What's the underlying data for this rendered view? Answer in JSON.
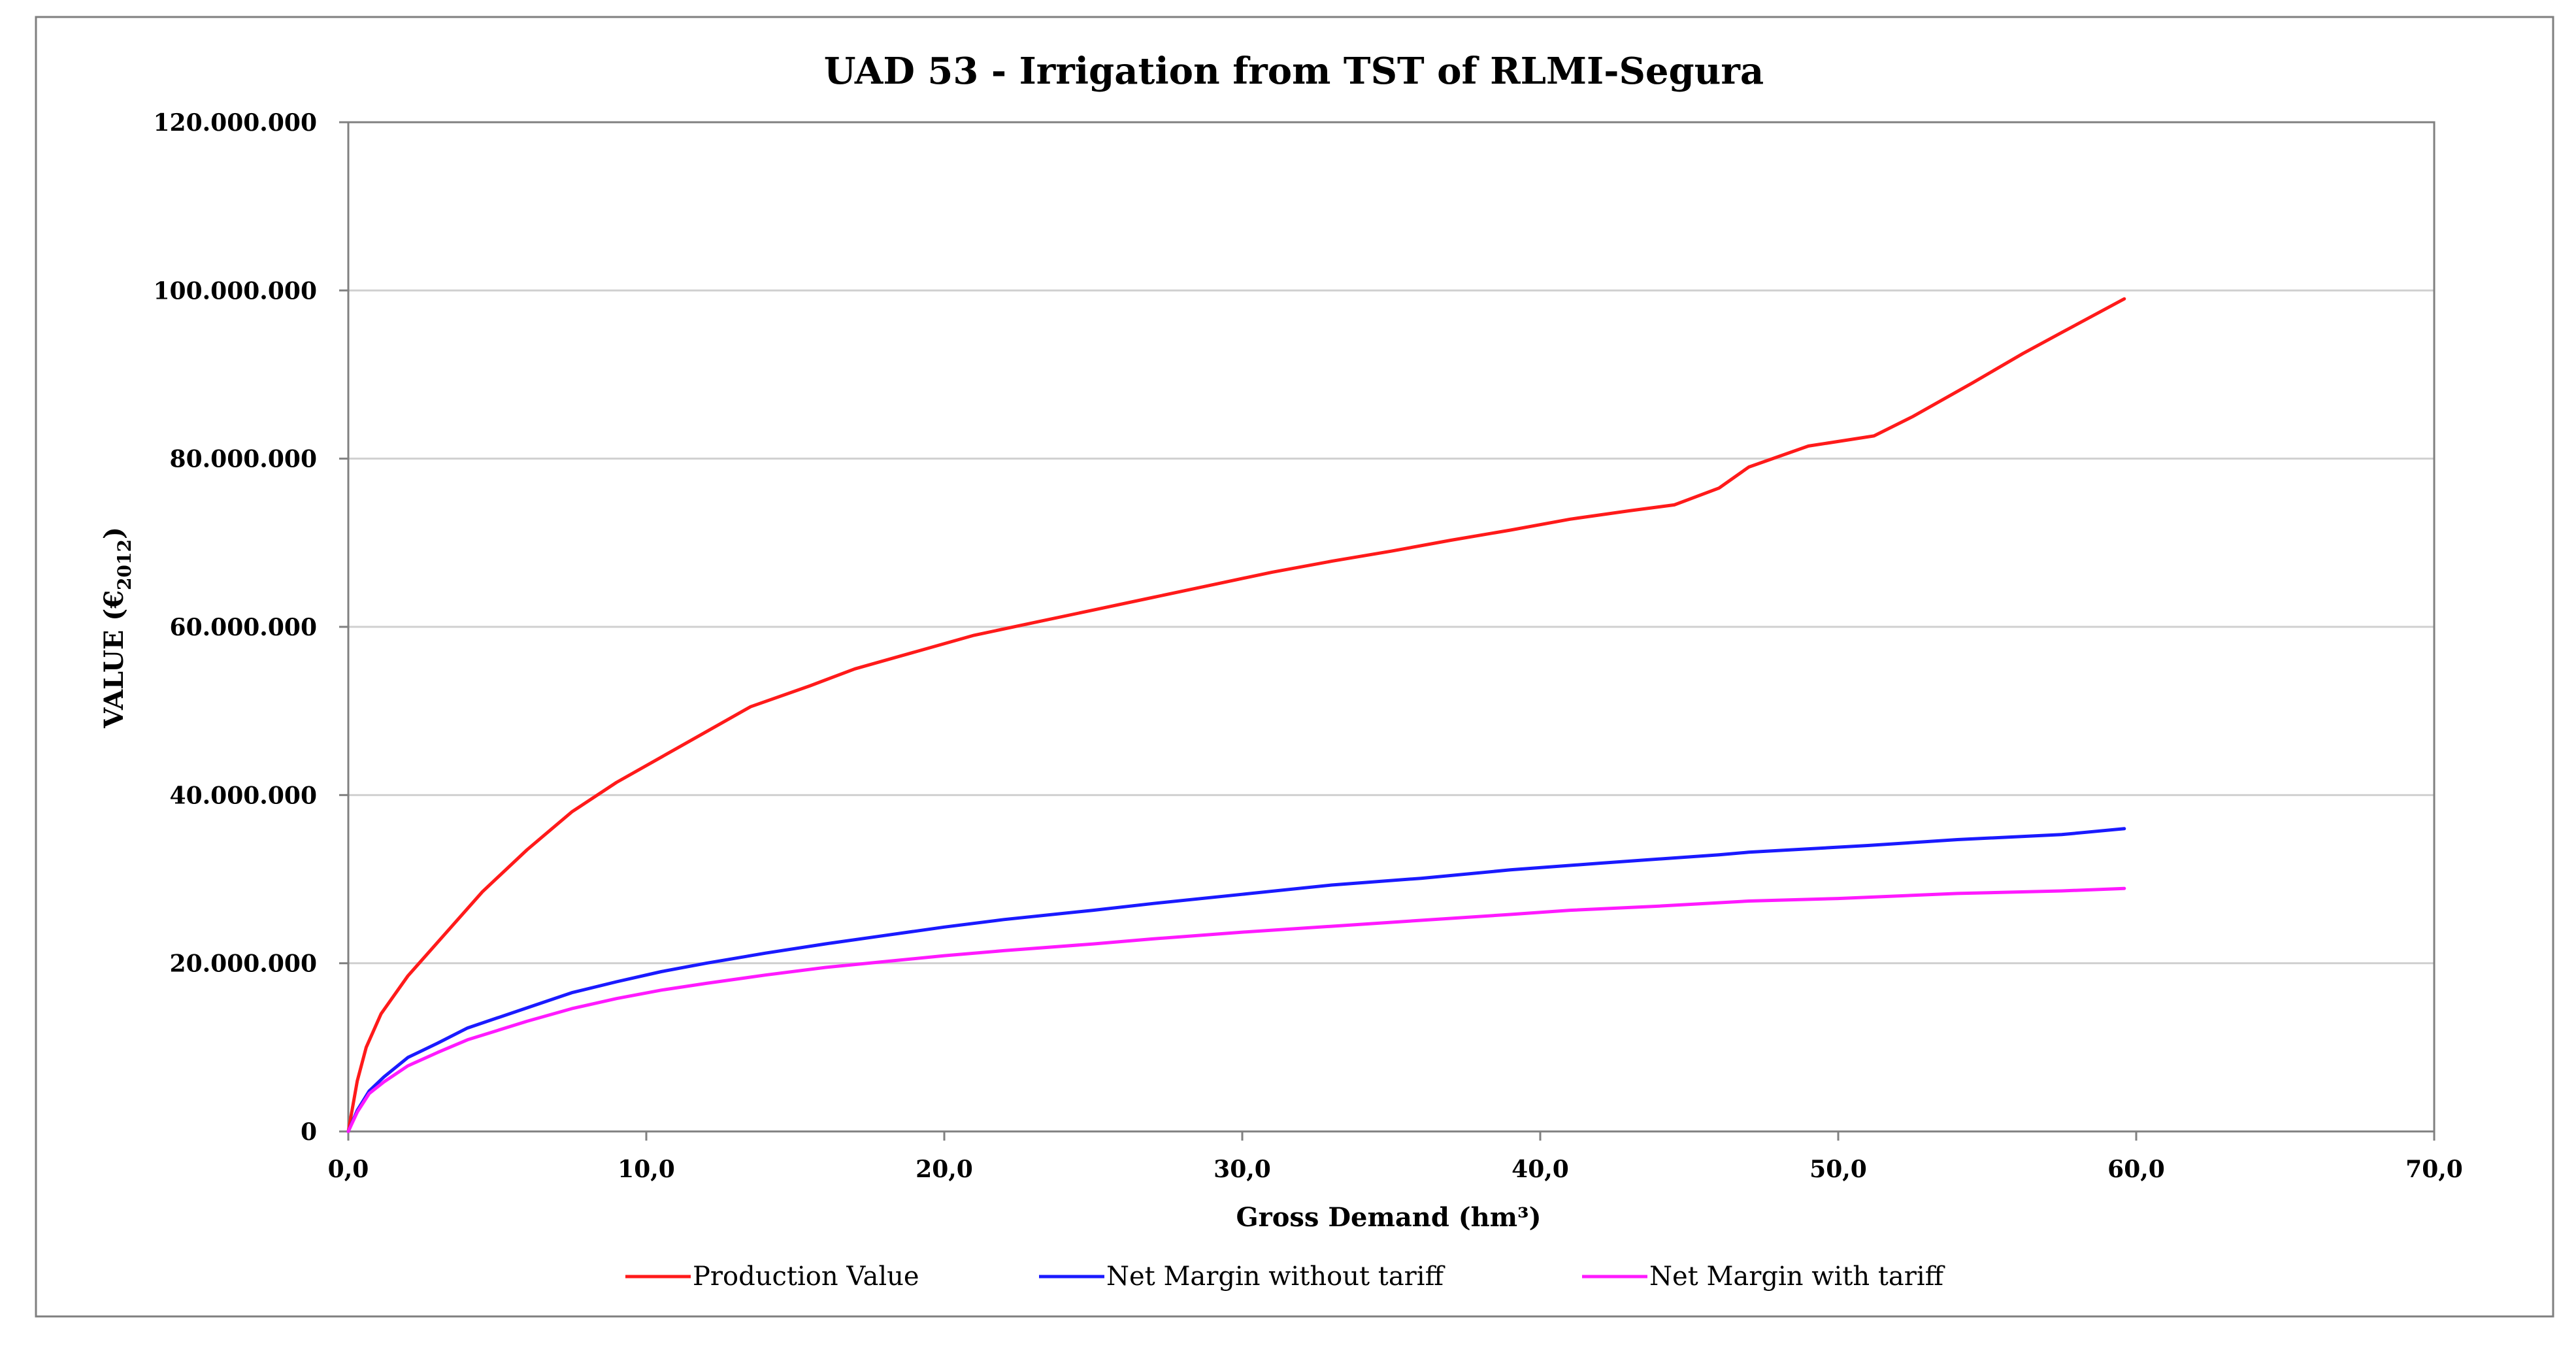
{
  "chart_data": {
    "type": "line",
    "title": "UAD 53 - Irrigation from TST of RLMI-Segura",
    "xlabel": "Gross Demand (hm³)",
    "ylabel_main": "VALUE (€",
    "ylabel_sub": "2012",
    "ylabel_close": ")",
    "xlim": [
      0,
      70
    ],
    "ylim": [
      0,
      120000000
    ],
    "x_ticks": [
      0,
      10,
      20,
      30,
      40,
      50,
      60,
      70
    ],
    "x_tick_labels": [
      "0,0",
      "10,0",
      "20,0",
      "30,0",
      "40,0",
      "50,0",
      "60,0",
      "70,0"
    ],
    "y_ticks": [
      0,
      20000000,
      40000000,
      60000000,
      80000000,
      100000000,
      120000000
    ],
    "y_tick_labels": [
      "0",
      "20.000.000",
      "40.000.000",
      "60.000.000",
      "80.000.000",
      "100.000.000",
      "120.000.000"
    ],
    "grid": "horizontal",
    "legend_position": "bottom",
    "series": [
      {
        "name": "Production Value",
        "color": "#ff1a1a",
        "x": [
          0,
          0.3,
          0.6,
          1.1,
          2,
          3,
          4.5,
          6,
          7.5,
          9,
          10.5,
          12,
          13.5,
          15.5,
          17,
          19,
          21,
          23,
          25,
          27,
          29,
          31,
          33,
          35,
          37,
          39,
          41,
          43,
          44.5,
          46,
          47,
          49,
          51.2,
          52.5,
          54.5,
          56.2,
          57.5,
          59.6
        ],
        "y": [
          0,
          6000000,
          10000000,
          14000000,
          18500000,
          22500000,
          28500000,
          33500000,
          38000000,
          41500000,
          44500000,
          47500000,
          50500000,
          53000000,
          55000000,
          57000000,
          59000000,
          60500000,
          62000000,
          63500000,
          65000000,
          66500000,
          67800000,
          69000000,
          70300000,
          71500000,
          72800000,
          73800000,
          74500000,
          76500000,
          79000000,
          81500000,
          82700000,
          85000000,
          89000000,
          92500000,
          95000000,
          99000000
        ]
      },
      {
        "name": "Net Margin without tariff",
        "color": "#1a1aff",
        "x": [
          0,
          0.3,
          0.7,
          1.2,
          2,
          3,
          4,
          5,
          6,
          7.5,
          9,
          10.5,
          12,
          14,
          16,
          18,
          20,
          22,
          25,
          27,
          30,
          33,
          36,
          39,
          42,
          46,
          47,
          51,
          54,
          57.5,
          59.6
        ],
        "y": [
          0,
          2500000,
          4800000,
          6500000,
          8800000,
          10500000,
          12300000,
          13500000,
          14700000,
          16500000,
          17800000,
          19000000,
          20000000,
          21200000,
          22300000,
          23300000,
          24300000,
          25200000,
          26300000,
          27100000,
          28200000,
          29300000,
          30100000,
          31100000,
          31900000,
          32900000,
          33200000,
          34000000,
          34700000,
          35300000,
          36000000
        ]
      },
      {
        "name": "Net Margin with tariff",
        "color": "#ff1aff",
        "x": [
          0,
          0.3,
          0.7,
          1.2,
          2,
          3,
          4,
          5,
          6,
          7.5,
          9,
          10.5,
          12,
          14,
          16,
          18,
          20,
          22,
          25,
          27,
          30,
          33,
          36,
          39,
          41,
          44,
          47,
          50,
          54,
          57.5,
          59.6
        ],
        "y": [
          0,
          2300000,
          4500000,
          5900000,
          7800000,
          9400000,
          10900000,
          12000000,
          13100000,
          14600000,
          15800000,
          16800000,
          17600000,
          18600000,
          19500000,
          20200000,
          20900000,
          21500000,
          22300000,
          22900000,
          23700000,
          24400000,
          25100000,
          25800000,
          26300000,
          26800000,
          27400000,
          27700000,
          28300000,
          28600000,
          28900000
        ]
      }
    ]
  }
}
